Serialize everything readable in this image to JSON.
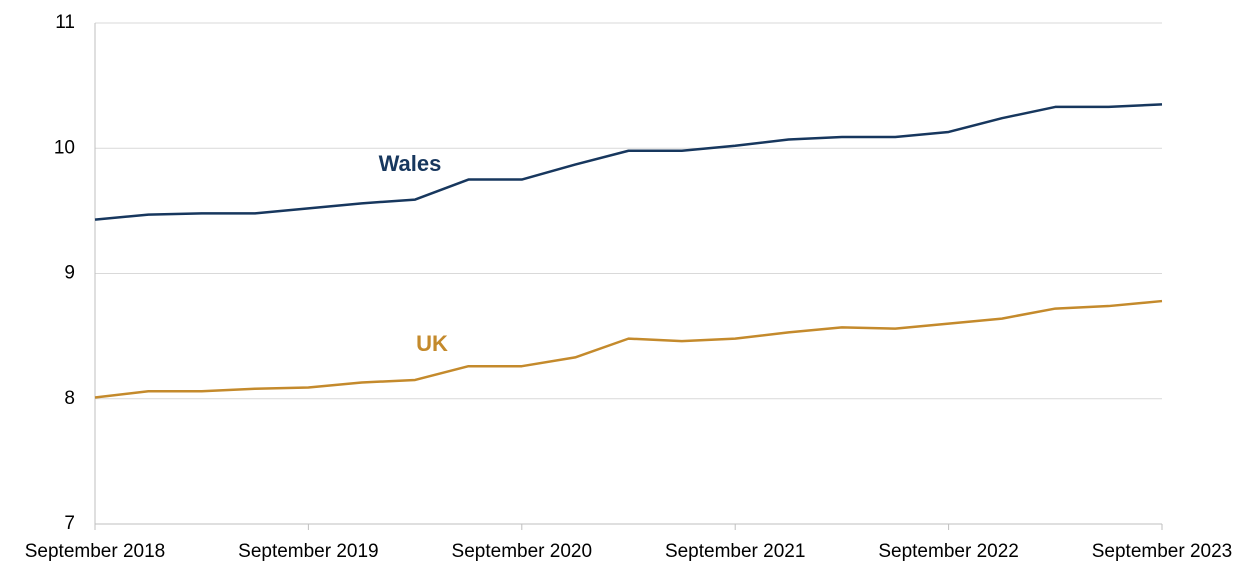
{
  "chart_data": {
    "type": "line",
    "categories": [
      "September 2018",
      null,
      null,
      null,
      "September 2019",
      null,
      null,
      null,
      "September 2020",
      null,
      null,
      null,
      "September 2021",
      null,
      null,
      null,
      "September 2022",
      null,
      null,
      null,
      "September 2023"
    ],
    "series": [
      {
        "name": "Wales",
        "color": "#17375e",
        "values": [
          9.43,
          9.47,
          9.48,
          9.48,
          9.52,
          9.56,
          9.59,
          9.75,
          9.75,
          9.87,
          9.98,
          9.98,
          10.02,
          10.07,
          10.09,
          10.09,
          10.13,
          10.24,
          10.33,
          10.33,
          10.35
        ]
      },
      {
        "name": "UK",
        "color": "#c48a2c",
        "values": [
          8.01,
          8.06,
          8.06,
          8.08,
          8.09,
          8.13,
          8.15,
          8.26,
          8.26,
          8.33,
          8.48,
          8.46,
          8.48,
          8.53,
          8.57,
          8.56,
          8.6,
          8.64,
          8.72,
          8.74,
          8.78
        ]
      }
    ],
    "ylim": [
      7,
      11
    ],
    "yticks": [
      7,
      8,
      9,
      10,
      11
    ],
    "grid": true
  }
}
